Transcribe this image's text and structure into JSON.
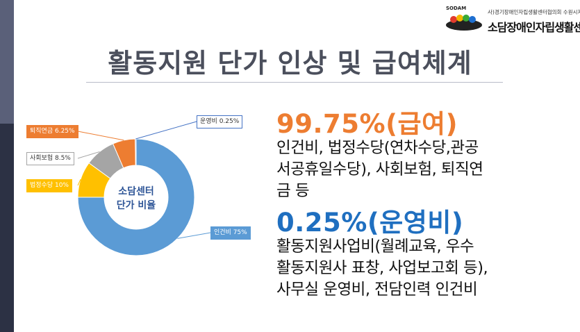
{
  "logo": {
    "tag": "SODAM",
    "org_line": "사)경기장애인자립생활센터협의회 수원시지부",
    "brand_name": "소담장애인자립생활센터"
  },
  "page_title": "활동지원 단가 인상 및 급여체계",
  "chart_data": {
    "type": "pie",
    "style": "donut",
    "title": "",
    "center_label_line1": "소담센터",
    "center_label_line2": "단가 비율",
    "slices": [
      {
        "name": "인건비",
        "value": 75,
        "label": "인건비 75%",
        "color": "#5b9bd5"
      },
      {
        "name": "법정수당",
        "value": 10,
        "label": "법정수당 10%",
        "color": "#ffc000"
      },
      {
        "name": "사회보험",
        "value": 8.5,
        "label": "사회보험 8.5%",
        "color": "#a5a5a5"
      },
      {
        "name": "퇴직연금",
        "value": 6.25,
        "label": "퇴직연금 6.25%",
        "color": "#ed7d31"
      },
      {
        "name": "운영비",
        "value": 0.25,
        "label": "운영비 0.25%",
        "color": "#4472c4"
      }
    ]
  },
  "sections": [
    {
      "heading": "99.75%(급여)",
      "color": "#ed7d31",
      "lines": [
        "인건비, 법정수당(연차수당,관공",
        "서공휴일수당), 사회보험, 퇴직연",
        "금 등"
      ]
    },
    {
      "heading": "0.25%(운영비)",
      "color": "#1f6fc0",
      "lines": [
        "활동지원사업비(월례교육, 우수",
        "활동지원사 표창, 사업보고회 등),",
        "사무실 운영비, 전담인력 인건비"
      ]
    }
  ]
}
